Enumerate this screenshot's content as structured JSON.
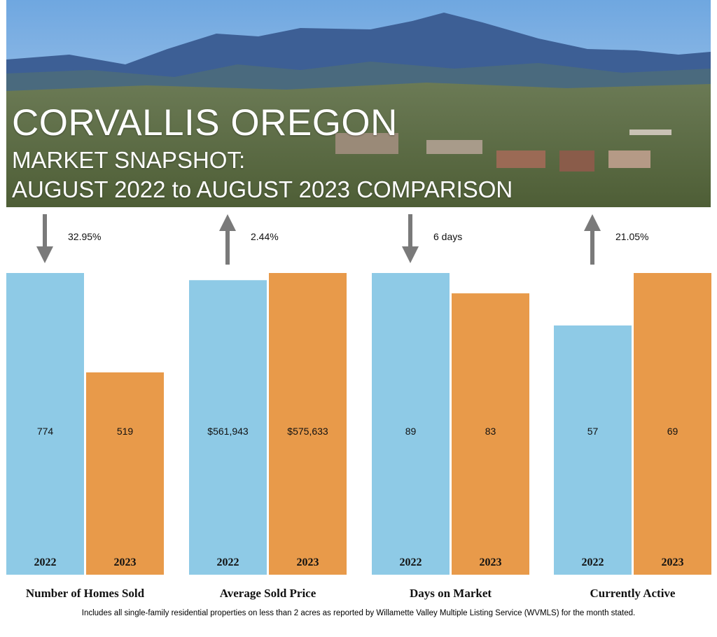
{
  "header": {
    "title": "CORVALLIS OREGON",
    "subtitle_line1": "MARKET SNAPSHOT:",
    "subtitle_line2": "AUGUST 2022 to AUGUST 2023 COMPARISON"
  },
  "colors": {
    "year_2022": "#8ECAE6",
    "year_2023": "#E89A4A",
    "arrow": "#7a7a7a"
  },
  "footnote": "Includes all single-family residential properties on less than 2 acres as reported by Willamette Valley Multiple Listing Service (WVMLS) for the month stated.",
  "chart_data": {
    "type": "bar",
    "series_names": [
      "2022",
      "2023"
    ],
    "groups": [
      {
        "label": "Number of Homes Sold",
        "values": [
          774,
          519
        ],
        "value_labels": [
          "774",
          "519"
        ],
        "change": "32.95%",
        "direction": "down"
      },
      {
        "label": "Average Sold Price",
        "values": [
          561943,
          575633
        ],
        "value_labels": [
          "$561,943",
          "$575,633"
        ],
        "change": "2.44%",
        "direction": "up"
      },
      {
        "label": "Days on Market",
        "values": [
          89,
          83
        ],
        "value_labels": [
          "89",
          "83"
        ],
        "change": "6 days",
        "direction": "down"
      },
      {
        "label": "Currently Active",
        "values": [
          57,
          69
        ],
        "value_labels": [
          "57",
          "69"
        ],
        "change": "21.05%",
        "direction": "up"
      }
    ]
  }
}
